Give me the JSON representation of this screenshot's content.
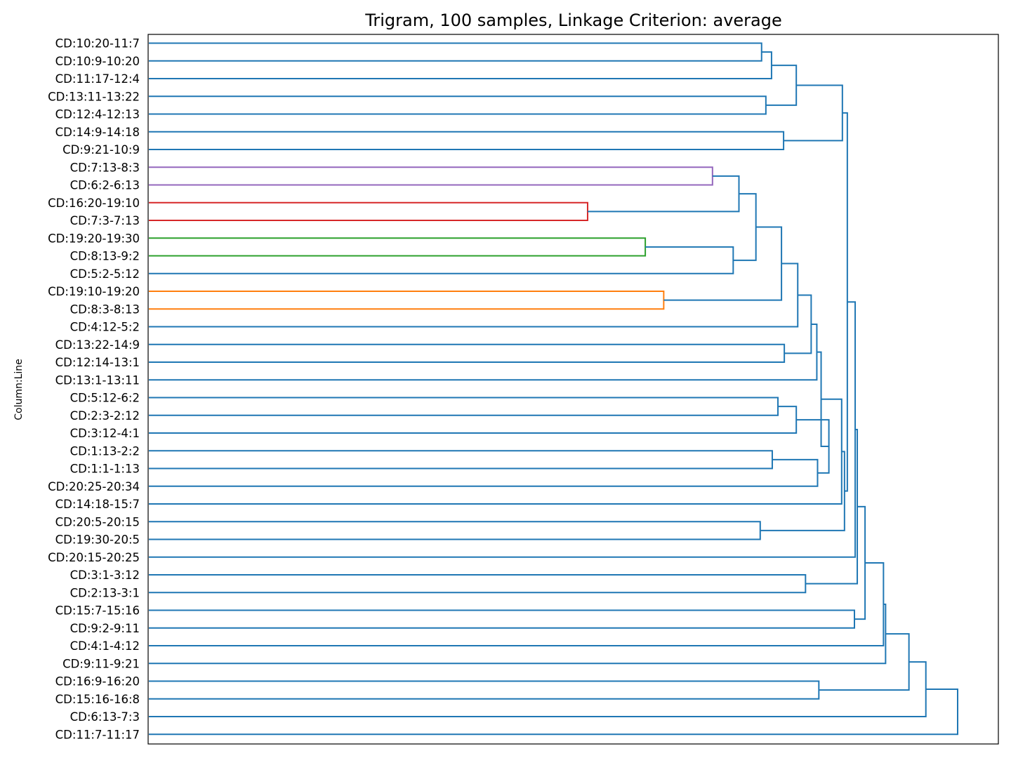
{
  "chart_data": {
    "type": "dendrogram",
    "title": "Trigram, 100 samples, Linkage Criterion: average",
    "ylabel": "Column:Line",
    "orientation": "left",
    "grid": false,
    "linkage": "average",
    "leaves": [
      "CD:10:20-11:7",
      "CD:10:9-10:20",
      "CD:11:17-12:4",
      "CD:13:11-13:22",
      "CD:12:4-12:13",
      "CD:14:9-14:18",
      "CD:9:21-10:9",
      "CD:7:13-8:3",
      "CD:6:2-6:13",
      "CD:16:20-19:10",
      "CD:7:3-7:13",
      "CD:19:20-19:30",
      "CD:8:13-9:2",
      "CD:5:2-5:12",
      "CD:19:10-19:20",
      "CD:8:3-8:13",
      "CD:4:12-5:2",
      "CD:13:22-14:9",
      "CD:12:14-13:1",
      "CD:13:1-13:11",
      "CD:5:12-6:2",
      "CD:2:3-2:12",
      "CD:3:12-4:1",
      "CD:1:13-2:2",
      "CD:1:1-1:13",
      "CD:20:25-20:34",
      "CD:14:18-15:7",
      "CD:20:5-20:15",
      "CD:19:30-20:5",
      "CD:20:15-20:25",
      "CD:3:1-3:12",
      "CD:2:13-3:1",
      "CD:15:7-15:16",
      "CD:9:2-9:11",
      "CD:4:1-4:12",
      "CD:9:11-9:21",
      "CD:16:9-16:20",
      "CD:15:16-16:8",
      "CD:6:13-7:3",
      "CD:11:7-11:17"
    ],
    "merge_height_scale": "0 = leaf level, 1 = root merge",
    "merges": [
      {
        "a": "L0",
        "b": "L1",
        "height": 0.7576,
        "color": "#1f77b4"
      },
      {
        "a": "M0",
        "b": "L2",
        "height": 0.7699,
        "color": "#1f77b4"
      },
      {
        "a": "L3",
        "b": "L4",
        "height": 0.7629,
        "color": "#1f77b4"
      },
      {
        "a": "M1",
        "b": "M2",
        "height": 0.8005,
        "color": "#1f77b4"
      },
      {
        "a": "L5",
        "b": "L6",
        "height": 0.7848,
        "color": "#1f77b4"
      },
      {
        "a": "M3",
        "b": "M4",
        "height": 0.8575,
        "color": "#1f77b4"
      },
      {
        "a": "L7",
        "b": "L8",
        "height": 0.6969,
        "color": "#9467bd"
      },
      {
        "a": "L9",
        "b": "L10",
        "height": 0.5425,
        "color": "#d62728"
      },
      {
        "a": "M6",
        "b": "M7",
        "height": 0.7296,
        "color": "#1f77b4"
      },
      {
        "a": "L11",
        "b": "L12",
        "height": 0.6138,
        "color": "#2ca02c"
      },
      {
        "a": "M9",
        "b": "L13",
        "height": 0.7225,
        "color": "#1f77b4"
      },
      {
        "a": "M8",
        "b": "M10",
        "height": 0.7506,
        "color": "#1f77b4"
      },
      {
        "a": "L14",
        "b": "L15",
        "height": 0.6366,
        "color": "#ff7f0e"
      },
      {
        "a": "M11",
        "b": "M12",
        "height": 0.7822,
        "color": "#1f77b4"
      },
      {
        "a": "M13",
        "b": "L16",
        "height": 0.8023,
        "color": "#1f77b4"
      },
      {
        "a": "L17",
        "b": "L18",
        "height": 0.7857,
        "color": "#1f77b4"
      },
      {
        "a": "M14",
        "b": "M15",
        "height": 0.8189,
        "color": "#1f77b4"
      },
      {
        "a": "M16",
        "b": "L19",
        "height": 0.8259,
        "color": "#1f77b4"
      },
      {
        "a": "L20",
        "b": "L21",
        "height": 0.7778,
        "color": "#1f77b4"
      },
      {
        "a": "M18",
        "b": "L22",
        "height": 0.8005,
        "color": "#1f77b4"
      },
      {
        "a": "L23",
        "b": "L24",
        "height": 0.7708,
        "color": "#1f77b4"
      },
      {
        "a": "M20",
        "b": "L25",
        "height": 0.8268,
        "color": "#1f77b4"
      },
      {
        "a": "M19",
        "b": "M21",
        "height": 0.8408,
        "color": "#1f77b4"
      },
      {
        "a": "M17",
        "b": "M22",
        "height": 0.8312,
        "color": "#1f77b4"
      },
      {
        "a": "M23",
        "b": "L26",
        "height": 0.8566,
        "color": "#1f77b4"
      },
      {
        "a": "L27",
        "b": "L28",
        "height": 0.7559,
        "color": "#1f77b4"
      },
      {
        "a": "M24",
        "b": "M25",
        "height": 0.8601,
        "color": "#1f77b4"
      },
      {
        "a": "M5",
        "b": "M26",
        "height": 0.8636,
        "color": "#1f77b4"
      },
      {
        "a": "M27",
        "b": "L29",
        "height": 0.8733,
        "color": "#1f77b4"
      },
      {
        "a": "L30",
        "b": "L31",
        "height": 0.8119,
        "color": "#1f77b4"
      },
      {
        "a": "M28",
        "b": "M29",
        "height": 0.8759,
        "color": "#1f77b4"
      },
      {
        "a": "L32",
        "b": "L33",
        "height": 0.8724,
        "color": "#1f77b4"
      },
      {
        "a": "M30",
        "b": "M31",
        "height": 0.8855,
        "color": "#1f77b4"
      },
      {
        "a": "M32",
        "b": "L34",
        "height": 0.9083,
        "color": "#1f77b4"
      },
      {
        "a": "M33",
        "b": "L35",
        "height": 0.9109,
        "color": "#1f77b4"
      },
      {
        "a": "L36",
        "b": "L37",
        "height": 0.8284,
        "color": "#1f77b4"
      },
      {
        "a": "M34",
        "b": "M35",
        "height": 0.9398,
        "color": "#1f77b4"
      },
      {
        "a": "M36",
        "b": "L38",
        "height": 0.9607,
        "color": "#1f77b4"
      },
      {
        "a": "M37",
        "b": "L39",
        "height": 1.0,
        "color": "#1f77b4"
      }
    ]
  }
}
